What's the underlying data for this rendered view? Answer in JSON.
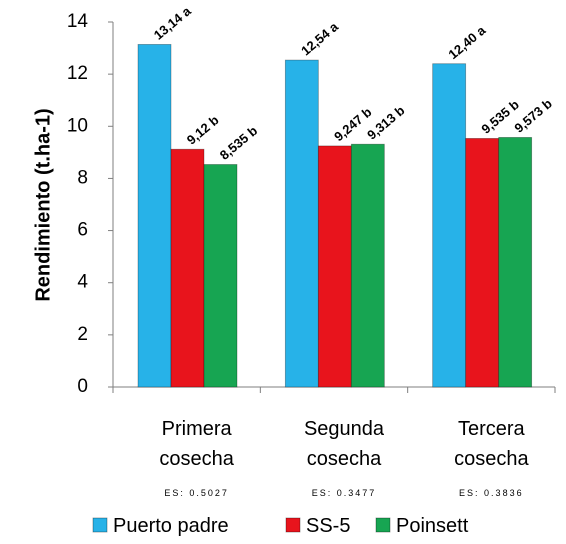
{
  "chart_data": {
    "type": "bar",
    "categories": [
      [
        "Primera",
        "cosecha"
      ],
      [
        "Segunda",
        "cosecha"
      ],
      [
        "Tercera",
        "cosecha"
      ]
    ],
    "category_notes": [
      "ES: 0.5027",
      "ES: 0.3477",
      "ES: 0.3836"
    ],
    "series": [
      {
        "name": "Puerto padre",
        "color": "#27b2e8",
        "values": [
          13.14,
          12.54,
          12.4
        ],
        "labels": [
          "13,14 a",
          "12,54 a",
          "12,40 a"
        ]
      },
      {
        "name": "SS-5",
        "color": "#e8141c",
        "values": [
          9.12,
          9.247,
          9.535
        ],
        "labels": [
          "9,12 b",
          "9,247 b",
          "9,535 b"
        ]
      },
      {
        "name": "Poinsett",
        "color": "#17a552",
        "values": [
          8.535,
          9.313,
          9.573
        ],
        "labels": [
          "8,535 b",
          "9,313 b",
          "9,573 b"
        ]
      }
    ],
    "ylabel": "Rendimiento (t.ha-1)",
    "xlabel": "",
    "ylim": [
      0,
      14
    ],
    "yticks": [
      0,
      2,
      4,
      6,
      8,
      10,
      12,
      14
    ],
    "grid": false,
    "legend_position": "bottom"
  }
}
